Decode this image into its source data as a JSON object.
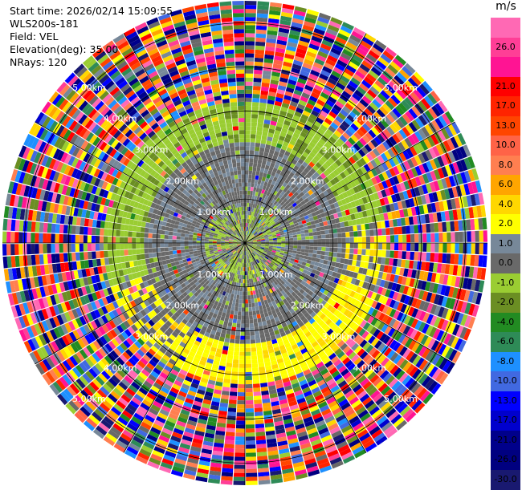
{
  "info": {
    "start_time": "Start time: 2026/02/14 15:09:55",
    "station": "WLS200s-181",
    "field": "Field: VEL",
    "elevation": "Elevation(deg): 35.00",
    "nrays": "NRays: 120"
  },
  "colorbar": {
    "unit": "m/s",
    "levels": [
      {
        "label": "",
        "color": "#ff69b4"
      },
      {
        "label": "26.0",
        "color": "#ff3e96"
      },
      {
        "label": "",
        "color": "#ff1493"
      },
      {
        "label": "21.0",
        "color": "#ff0000"
      },
      {
        "label": "17.0",
        "color": "#ff2400"
      },
      {
        "label": "13.0",
        "color": "#ff4500"
      },
      {
        "label": "10.0",
        "color": "#ff6347"
      },
      {
        "label": "8.0",
        "color": "#ff7f50"
      },
      {
        "label": "6.0",
        "color": "#ffa500"
      },
      {
        "label": "4.0",
        "color": "#ffd700"
      },
      {
        "label": "2.0",
        "color": "#ffff00"
      },
      {
        "label": "1.0",
        "color": "#778899"
      },
      {
        "label": "0.0",
        "color": "#696969"
      },
      {
        "label": "-1.0",
        "color": "#9acd32"
      },
      {
        "label": "-2.0",
        "color": "#6b8e23"
      },
      {
        "label": "-4.0",
        "color": "#228b22"
      },
      {
        "label": "-6.0",
        "color": "#2e8b57"
      },
      {
        "label": "-8.0",
        "color": "#1e90ff"
      },
      {
        "label": "-10.0",
        "color": "#4169e1"
      },
      {
        "label": "-13.0",
        "color": "#0000ff"
      },
      {
        "label": "-17.0",
        "color": "#0000cd"
      },
      {
        "label": "-21.0",
        "color": "#00008b"
      },
      {
        "label": "-26.0",
        "color": "#000080"
      },
      {
        "label": "-30.0",
        "color": "#191970"
      }
    ]
  },
  "chart_data": {
    "type": "heatmap",
    "field": "VEL",
    "nrays": 120,
    "elevation_deg": 35.0,
    "units": "m/s",
    "range_rings_km": [
      1.0,
      2.0,
      3.0,
      4.0,
      5.0
    ],
    "ring_labels": [
      "1.00km",
      "2.00km",
      "3.00km",
      "4.00km",
      "5.00km"
    ],
    "max_range_km": 5.5,
    "radial_zones": [
      {
        "range_km": [
          0.0,
          0.9
        ],
        "pattern": "mixed green and gray near origin"
      },
      {
        "range_km": [
          0.9,
          2.3
        ],
        "pattern": "gray, near zero velocity"
      },
      {
        "range_km": [
          2.3,
          3.2
        ],
        "pattern": "green negative velocities to the north/west, yellow positive velocities to the south/east"
      },
      {
        "range_km": [
          3.2,
          5.5
        ],
        "pattern": "noise, all colors"
      }
    ],
    "grid": true
  }
}
